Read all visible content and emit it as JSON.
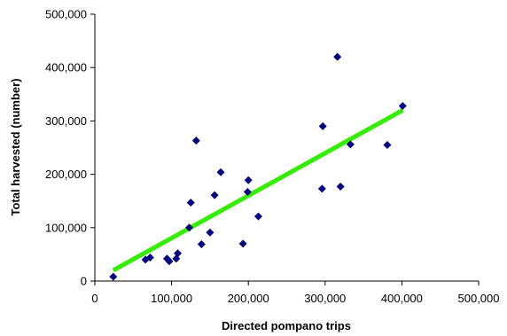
{
  "chart_data": {
    "type": "scatter",
    "xlabel": "Directed pompano trips",
    "ylabel": "Total harvested (number)",
    "xlim": [
      0,
      500000
    ],
    "ylim": [
      0,
      500000
    ],
    "x_ticks": [
      0,
      100000,
      200000,
      300000,
      400000,
      500000
    ],
    "y_ticks": [
      0,
      100000,
      200000,
      300000,
      400000,
      500000
    ],
    "x_tick_labels": [
      "0",
      "100,000",
      "200,000",
      "300,000",
      "400,000",
      "500,000"
    ],
    "y_tick_labels": [
      "0",
      "100,000",
      "200,000",
      "300,000",
      "400,000",
      "500,000"
    ],
    "grid": false,
    "points": [
      {
        "x": 24000,
        "y": 8000
      },
      {
        "x": 66000,
        "y": 40000
      },
      {
        "x": 72000,
        "y": 44000
      },
      {
        "x": 94000,
        "y": 42000
      },
      {
        "x": 97000,
        "y": 37000
      },
      {
        "x": 106000,
        "y": 42000
      },
      {
        "x": 108000,
        "y": 52000
      },
      {
        "x": 123000,
        "y": 100000
      },
      {
        "x": 125000,
        "y": 147000
      },
      {
        "x": 132000,
        "y": 263000
      },
      {
        "x": 139000,
        "y": 69000
      },
      {
        "x": 150000,
        "y": 91000
      },
      {
        "x": 156000,
        "y": 161000
      },
      {
        "x": 164000,
        "y": 204000
      },
      {
        "x": 193000,
        "y": 70000
      },
      {
        "x": 199000,
        "y": 167000
      },
      {
        "x": 200000,
        "y": 189000
      },
      {
        "x": 213000,
        "y": 121000
      },
      {
        "x": 296000,
        "y": 173000
      },
      {
        "x": 297000,
        "y": 290000
      },
      {
        "x": 316000,
        "y": 420000
      },
      {
        "x": 320000,
        "y": 177000
      },
      {
        "x": 333000,
        "y": 256000
      },
      {
        "x": 381000,
        "y": 255000
      },
      {
        "x": 401000,
        "y": 328000
      }
    ],
    "trendline": {
      "x": [
        24000,
        401000
      ],
      "y": [
        20000,
        320000
      ]
    },
    "colors": {
      "marker": "#000080",
      "trendline": "#33ee00",
      "axis": "#000000"
    }
  }
}
